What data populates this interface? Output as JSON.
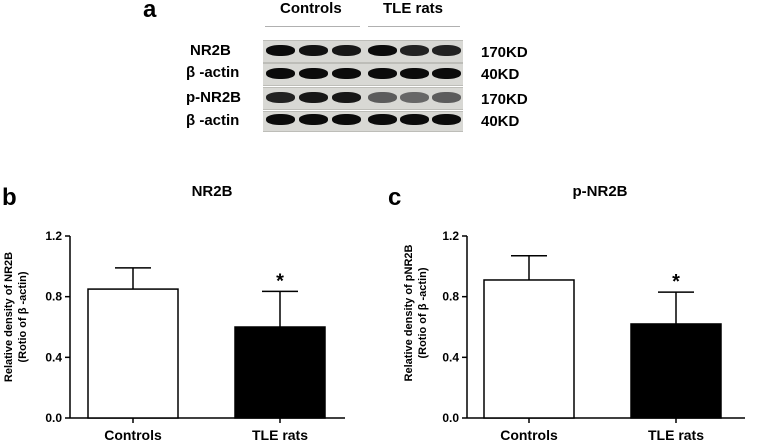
{
  "panel_a": {
    "letter": "a",
    "groups": [
      "Controls",
      "TLE rats"
    ],
    "rows": [
      {
        "label": "NR2B",
        "kd": "170KD",
        "band_darkness": [
          0.95,
          0.92,
          0.9,
          0.95,
          0.85,
          0.85
        ]
      },
      {
        "label": "β -actin",
        "kd": "40KD",
        "band_darkness": [
          0.95,
          0.95,
          0.95,
          0.95,
          0.95,
          0.95
        ]
      },
      {
        "label": "p-NR2B",
        "kd": "170KD",
        "band_darkness": [
          0.85,
          0.9,
          0.9,
          0.6,
          0.55,
          0.6
        ]
      },
      {
        "label": "β -actin",
        "kd": "40KD",
        "band_darkness": [
          0.95,
          0.95,
          0.95,
          0.95,
          0.95,
          0.95
        ]
      }
    ]
  },
  "chart_data": [
    {
      "type": "bar",
      "panel": "b",
      "title": "NR2B",
      "ylabel_line1": "Relative density of NR2B",
      "ylabel_line2": "(Rotio of  β -actin)",
      "categories": [
        "Controls",
        "TLE rats"
      ],
      "values": [
        0.85,
        0.6
      ],
      "errors": [
        0.14,
        0.235
      ],
      "fill": [
        "#ffffff",
        "#000000"
      ],
      "significance": [
        "",
        "*"
      ],
      "ylim": [
        0,
        1.2
      ],
      "yticks": [
        "0.0",
        "0.4",
        "0.8",
        "1.2"
      ]
    },
    {
      "type": "bar",
      "panel": "c",
      "title": "p-NR2B",
      "ylabel_line1": "Relative density of pNR2B",
      "ylabel_line2": "(Rotio of  β -actin)",
      "categories": [
        "Controls",
        "TLE rats"
      ],
      "values": [
        0.91,
        0.62
      ],
      "errors": [
        0.16,
        0.21
      ],
      "fill": [
        "#ffffff",
        "#000000"
      ],
      "significance": [
        "",
        "*"
      ],
      "ylim": [
        0,
        1.2
      ],
      "yticks": [
        "0.0",
        "0.4",
        "0.8",
        "1.2"
      ]
    }
  ]
}
